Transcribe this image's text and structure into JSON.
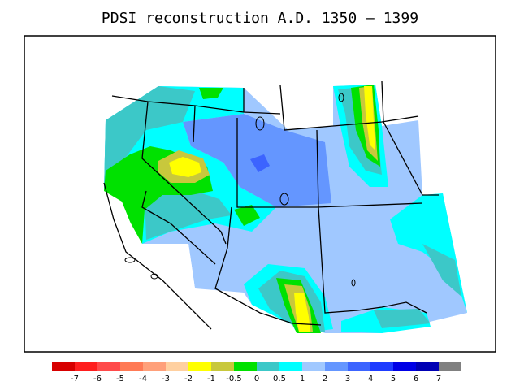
{
  "title": "PDSI reconstruction A.D. 1350 – 1399",
  "legend": {
    "colors": [
      "#d70000",
      "#ff1e1e",
      "#ff4a4a",
      "#ff7a55",
      "#ffa07a",
      "#ffd0a0",
      "#ffff00",
      "#c8c83c",
      "#00e100",
      "#3cc8c8",
      "#00ffff",
      "#a0c8ff",
      "#6496ff",
      "#3c64ff",
      "#1e3cff",
      "#0000e6",
      "#0000b4",
      "#808080"
    ],
    "labels": [
      "-7",
      "-6",
      "-5",
      "-4",
      "-3",
      "-2",
      "-1",
      "-0.5",
      "0",
      "0.5",
      "1",
      "2",
      "3",
      "4",
      "5",
      "6",
      "7"
    ]
  }
}
